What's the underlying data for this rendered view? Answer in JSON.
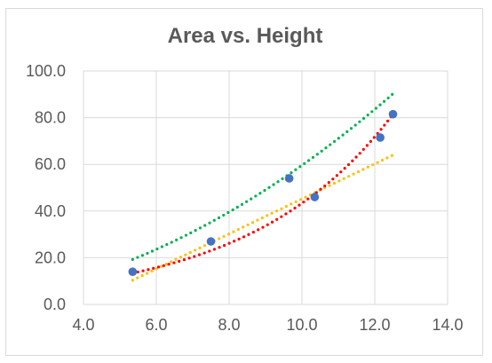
{
  "chart_data": {
    "type": "scatter",
    "title": "Area vs. Height",
    "xlabel": "",
    "ylabel": "",
    "xlim": [
      4.0,
      14.0
    ],
    "ylim": [
      0.0,
      100.0
    ],
    "x_ticks": [
      "4.0",
      "6.0",
      "8.0",
      "10.0",
      "12.0",
      "14.0"
    ],
    "y_ticks": [
      "0.0",
      "20.0",
      "40.0",
      "60.0",
      "80.0",
      "100.0"
    ],
    "grid": true,
    "legend": "none",
    "points": [
      {
        "x": 5.35,
        "y": 14.0
      },
      {
        "x": 7.5,
        "y": 27.0
      },
      {
        "x": 9.65,
        "y": 54.0
      },
      {
        "x": 10.35,
        "y": 46.0
      },
      {
        "x": 12.15,
        "y": 71.5
      },
      {
        "x": 12.5,
        "y": 81.5
      }
    ],
    "trendlines": [
      {
        "type": "linear",
        "color": "#ffc000",
        "x_range": [
          5.35,
          12.5
        ],
        "coefficients": [
          -29.76,
          7.5
        ]
      },
      {
        "type": "polynomial",
        "color": "#00b050",
        "x_range": [
          5.35,
          12.5
        ],
        "coefficients": [
          -0.4,
          1.0,
          0.5
        ]
      },
      {
        "type": "exponential",
        "color": "#ff0000",
        "x_range": [
          5.35,
          12.5
        ],
        "coefficients": [
          3.47,
          0.2525
        ]
      }
    ],
    "colors": {
      "points": "#4472c4",
      "grid": "#d9d9d9",
      "text": "#595959"
    }
  }
}
